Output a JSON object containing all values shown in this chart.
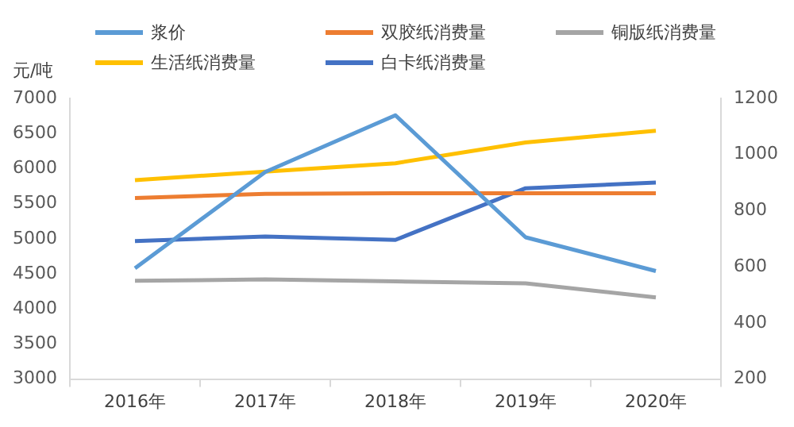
{
  "chart_data": {
    "type": "line",
    "ylabel": "元/吨",
    "categories": [
      "2016年",
      "2017年",
      "2018年",
      "2019年",
      "2020年"
    ],
    "series": [
      {
        "name": "浆价",
        "color": "#5b9bd5",
        "values": [
          4580,
          5950,
          6760,
          5020,
          4540
        ]
      },
      {
        "name": "双胶纸消费量",
        "color": "#ed7d31",
        "values": [
          845,
          860,
          862,
          862,
          862
        ],
        "axis": "y2"
      },
      {
        "name": "铜版纸消费量",
        "color": "#a5a5a5",
        "values": [
          550,
          555,
          548,
          541,
          491
        ],
        "axis": "y2"
      },
      {
        "name": "生活纸消费量",
        "color": "#ffc000",
        "values": [
          909,
          939,
          969,
          1043,
          1085
        ],
        "axis": "y2"
      },
      {
        "name": "白卡纸消费量",
        "color": "#4472c4",
        "values": [
          692,
          708,
          696,
          880,
          900
        ],
        "axis": "y2"
      }
    ],
    "ylim": [
      3000,
      7000
    ],
    "yticks": [
      3000,
      3500,
      4000,
      4500,
      5000,
      5500,
      6000,
      6500,
      7000
    ],
    "y2lim": [
      200,
      1200
    ],
    "y2ticks": [
      200,
      400,
      600,
      800,
      1000,
      1200
    ],
    "legend": "top",
    "grid": false,
    "marker": "none",
    "line_style": "solid"
  }
}
